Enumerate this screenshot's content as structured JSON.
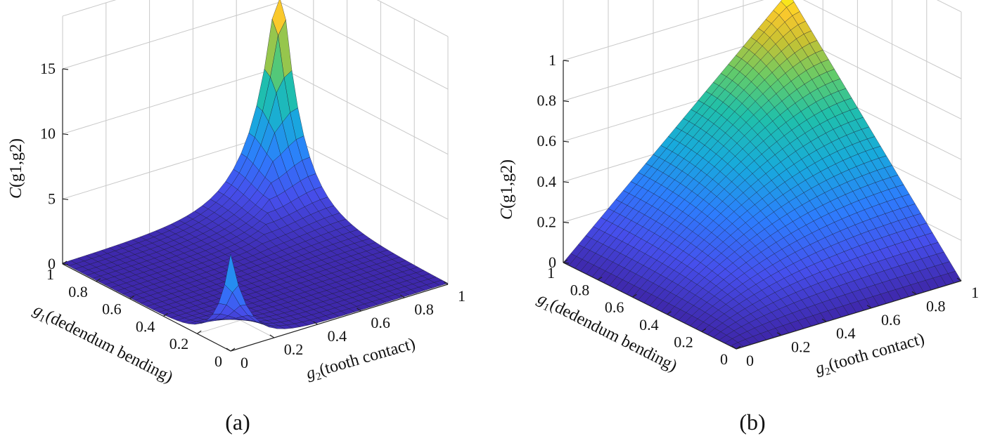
{
  "chart_data": [
    {
      "type": "surface",
      "panel": "(a)",
      "zlabel_main": "C",
      "zlabel_args": "(g1,g2)",
      "xlabel_prefix": "g",
      "xlabel_sub": "1",
      "xlabel_text": "(dedendum bending)",
      "ylabel_prefix": "g",
      "ylabel_sub": "2",
      "ylabel_text": "(tooth contact)",
      "x_ticks": [
        "0",
        "0.2",
        "0.4",
        "0.6",
        "0.8",
        "1"
      ],
      "y_ticks": [
        "0",
        "0.2",
        "0.4",
        "0.6",
        "0.8",
        "1"
      ],
      "z_ticks": [
        "0",
        "5",
        "10",
        "15"
      ],
      "zlim": [
        0,
        15
      ],
      "xlim": [
        0,
        1
      ],
      "ylim": [
        0,
        1
      ],
      "grid": true,
      "colormap": "parula",
      "description_values": {
        "peak_low_corner": 7.5,
        "peak_high_corner": 15.0,
        "flat_region": 0.05
      }
    },
    {
      "type": "surface",
      "panel": "(b)",
      "zlabel_main": "C",
      "zlabel_args": "(g1,g2)",
      "xlabel_prefix": "g",
      "xlabel_sub": "1",
      "xlabel_text": "(dedendum bending)",
      "ylabel_prefix": "g",
      "ylabel_sub": "2",
      "ylabel_text": "(tooth contact)",
      "x_ticks": [
        "0",
        "0.2",
        "0.4",
        "0.6",
        "0.8",
        "1"
      ],
      "y_ticks": [
        "0",
        "0.2",
        "0.4",
        "0.6",
        "0.8",
        "1"
      ],
      "z_ticks": [
        "0",
        "0.2",
        "0.4",
        "0.6",
        "0.8",
        "1"
      ],
      "zlim": [
        0,
        1
      ],
      "xlim": [
        0,
        1
      ],
      "ylim": [
        0,
        1
      ],
      "grid": true,
      "colormap": "parula"
    }
  ],
  "captions": {
    "a": "(a)",
    "b": "(b)"
  }
}
